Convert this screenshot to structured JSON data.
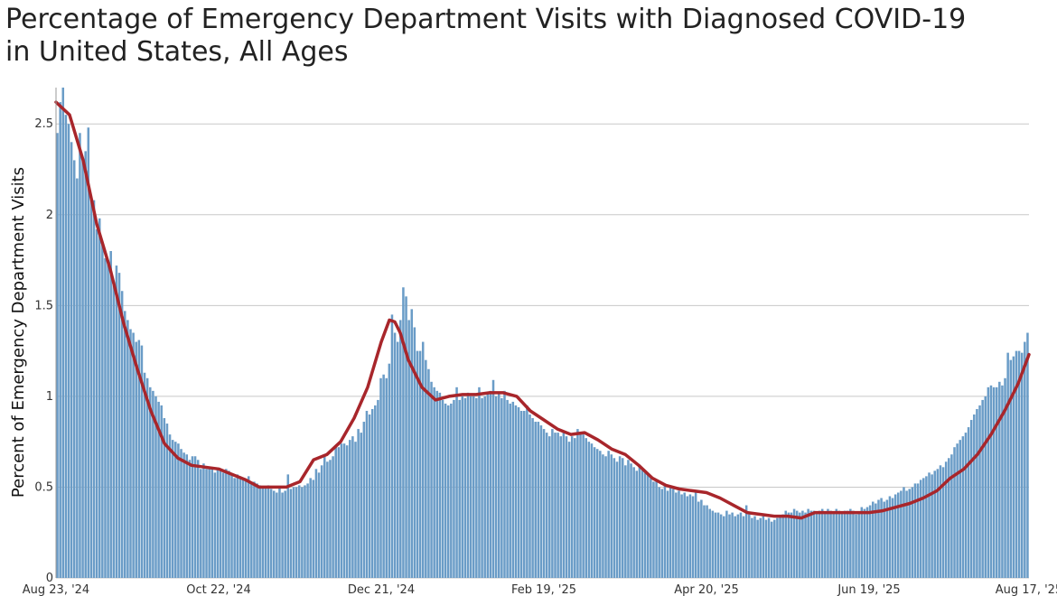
{
  "title_line1": "Percentage of Emergency Department Visits with Diagnosed COVID-19",
  "title_line2": "in United States, All Ages",
  "chart_data": {
    "type": "bar",
    "title": "Percentage of Emergency Department Visits with Diagnosed COVID-19 in United States, All Ages",
    "ylabel": "Percent of Emergency Department Visits",
    "xlabel": "",
    "ylim": [
      0,
      2.7
    ],
    "y_ticks": [
      0,
      0.5,
      1,
      1.5,
      2,
      2.5
    ],
    "y_tick_labels": [
      "0",
      "0.5",
      "1",
      "1.5",
      "2",
      "2.5"
    ],
    "x_tick_labels": [
      "Aug 23, '24",
      "Oct 22, '24",
      "Dec 21, '24",
      "Feb 19, '25",
      "Apr 20, '25",
      "Jun 19, '25",
      "Aug 17, '25"
    ],
    "x_tick_days": [
      0,
      60,
      120,
      180,
      240,
      300,
      359
    ],
    "grid": true,
    "colors": {
      "bars": "#6a9cc7",
      "average_line": "#a8262b",
      "grid": "#c8c8c8"
    },
    "series": [
      {
        "type": "bar",
        "daily_values": [
          2.45,
          2.62,
          2.7,
          2.55,
          2.5,
          2.4,
          2.3,
          2.2,
          2.45,
          2.3,
          2.35,
          2.48,
          2.1,
          2.08,
          1.92,
          1.98,
          1.85,
          1.76,
          1.75,
          1.8,
          1.62,
          1.72,
          1.68,
          1.58,
          1.47,
          1.42,
          1.37,
          1.35,
          1.3,
          1.31,
          1.28,
          1.13,
          1.1,
          1.05,
          1.03,
          1.0,
          0.97,
          0.95,
          0.88,
          0.85,
          0.79,
          0.76,
          0.75,
          0.74,
          0.71,
          0.69,
          0.68,
          0.65,
          0.67,
          0.67,
          0.65,
          0.6,
          0.63,
          0.6,
          0.6,
          0.61,
          0.58,
          0.6,
          0.6,
          0.58,
          0.6,
          0.59,
          0.57,
          0.55,
          0.57,
          0.56,
          0.54,
          0.54,
          0.56,
          0.53,
          0.53,
          0.52,
          0.51,
          0.5,
          0.5,
          0.51,
          0.49,
          0.48,
          0.47,
          0.5,
          0.47,
          0.48,
          0.57,
          0.49,
          0.5,
          0.5,
          0.51,
          0.5,
          0.51,
          0.52,
          0.55,
          0.54,
          0.6,
          0.58,
          0.62,
          0.68,
          0.64,
          0.65,
          0.67,
          0.73,
          0.72,
          0.74,
          0.74,
          0.73,
          0.76,
          0.78,
          0.75,
          0.82,
          0.8,
          0.86,
          0.92,
          0.9,
          0.93,
          0.95,
          0.98,
          1.1,
          1.12,
          1.1,
          1.18,
          1.45,
          1.35,
          1.3,
          1.42,
          1.6,
          1.55,
          1.42,
          1.48,
          1.38,
          1.25,
          1.25,
          1.3,
          1.2,
          1.15,
          1.08,
          1.05,
          1.03,
          1.02,
          0.98,
          0.96,
          0.95,
          0.96,
          0.98,
          1.05,
          0.98,
          1.0,
          0.99,
          1.02,
          1.0,
          1.0,
          0.99,
          1.05,
          0.99,
          1.0,
          1.02,
          1.03,
          1.09,
          1.0,
          1.02,
          0.99,
          1.03,
          0.98,
          0.96,
          0.97,
          0.95,
          0.94,
          0.92,
          0.92,
          0.95,
          0.9,
          0.88,
          0.86,
          0.86,
          0.84,
          0.82,
          0.8,
          0.78,
          0.82,
          0.8,
          0.8,
          0.78,
          0.8,
          0.78,
          0.75,
          0.78,
          0.77,
          0.82,
          0.8,
          0.79,
          0.77,
          0.75,
          0.74,
          0.72,
          0.71,
          0.7,
          0.68,
          0.67,
          0.7,
          0.68,
          0.66,
          0.64,
          0.67,
          0.66,
          0.62,
          0.65,
          0.63,
          0.61,
          0.59,
          0.62,
          0.6,
          0.58,
          0.57,
          0.55,
          0.53,
          0.54,
          0.5,
          0.49,
          0.51,
          0.48,
          0.5,
          0.49,
          0.47,
          0.48,
          0.46,
          0.47,
          0.45,
          0.46,
          0.45,
          0.47,
          0.42,
          0.43,
          0.4,
          0.4,
          0.38,
          0.37,
          0.36,
          0.36,
          0.35,
          0.34,
          0.37,
          0.35,
          0.36,
          0.34,
          0.35,
          0.36,
          0.34,
          0.4,
          0.35,
          0.33,
          0.34,
          0.32,
          0.33,
          0.34,
          0.32,
          0.33,
          0.31,
          0.32,
          0.33,
          0.34,
          0.35,
          0.37,
          0.36,
          0.36,
          0.38,
          0.37,
          0.36,
          0.37,
          0.36,
          0.38,
          0.37,
          0.37,
          0.36,
          0.37,
          0.38,
          0.36,
          0.38,
          0.37,
          0.36,
          0.38,
          0.37,
          0.36,
          0.37,
          0.37,
          0.38,
          0.37,
          0.35,
          0.36,
          0.39,
          0.38,
          0.39,
          0.4,
          0.42,
          0.41,
          0.43,
          0.44,
          0.42,
          0.43,
          0.45,
          0.44,
          0.46,
          0.47,
          0.48,
          0.5,
          0.48,
          0.49,
          0.5,
          0.52,
          0.52,
          0.54,
          0.55,
          0.56,
          0.58,
          0.57,
          0.59,
          0.6,
          0.62,
          0.61,
          0.64,
          0.66,
          0.68,
          0.72,
          0.74,
          0.76,
          0.78,
          0.8,
          0.83,
          0.87,
          0.9,
          0.93,
          0.95,
          0.98,
          1.0,
          1.05,
          1.06,
          1.05,
          1.05,
          1.08,
          1.06,
          1.1,
          1.24,
          1.2,
          1.22,
          1.25,
          1.25,
          1.24,
          1.3,
          1.35
        ]
      },
      {
        "type": "line",
        "x_days": [
          0,
          5,
          10,
          15,
          20,
          25,
          30,
          35,
          40,
          45,
          50,
          55,
          60,
          65,
          70,
          75,
          80,
          85,
          90,
          95,
          100,
          105,
          110,
          115,
          120,
          123,
          125,
          127,
          130,
          135,
          140,
          145,
          150,
          155,
          160,
          165,
          170,
          175,
          180,
          185,
          190,
          195,
          200,
          205,
          210,
          215,
          220,
          225,
          230,
          235,
          240,
          245,
          250,
          255,
          260,
          265,
          270,
          275,
          280,
          285,
          290,
          295,
          300,
          305,
          310,
          315,
          320,
          325,
          330,
          335,
          340,
          345,
          350,
          355,
          359
        ],
        "values": [
          2.62,
          2.55,
          2.3,
          1.95,
          1.7,
          1.4,
          1.15,
          0.92,
          0.74,
          0.66,
          0.62,
          0.61,
          0.6,
          0.57,
          0.54,
          0.5,
          0.5,
          0.5,
          0.53,
          0.65,
          0.68,
          0.75,
          0.88,
          1.05,
          1.3,
          1.42,
          1.41,
          1.35,
          1.2,
          1.05,
          0.98,
          1.0,
          1.01,
          1.01,
          1.02,
          1.02,
          1.0,
          0.92,
          0.87,
          0.82,
          0.79,
          0.8,
          0.76,
          0.71,
          0.68,
          0.62,
          0.55,
          0.51,
          0.49,
          0.48,
          0.47,
          0.44,
          0.4,
          0.36,
          0.35,
          0.34,
          0.34,
          0.33,
          0.36,
          0.36,
          0.36,
          0.36,
          0.36,
          0.37,
          0.39,
          0.41,
          0.44,
          0.48,
          0.55,
          0.6,
          0.68,
          0.79,
          0.92,
          1.07,
          1.23
        ]
      }
    ]
  }
}
